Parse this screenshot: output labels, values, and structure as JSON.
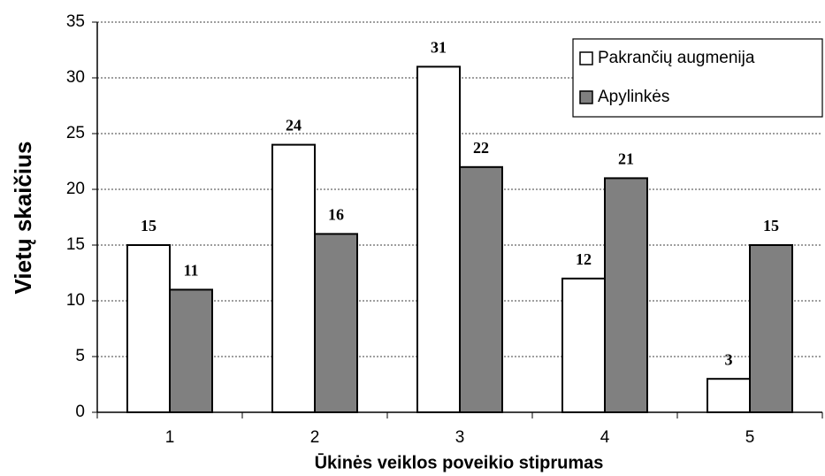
{
  "chart_data": {
    "type": "bar",
    "y_label": "Vietų skaičius",
    "x_label": "Ūkinės veiklos poveikio stiprumas",
    "categories": [
      "1",
      "2",
      "3",
      "4",
      "5"
    ],
    "series": [
      {
        "name": "Pakrančių augmenija",
        "color": "#ffffff",
        "values": [
          15,
          24,
          31,
          12,
          3
        ]
      },
      {
        "name": "Apylinkės",
        "color": "#808080",
        "values": [
          11,
          16,
          22,
          21,
          15
        ]
      }
    ],
    "ylim": [
      0,
      35
    ],
    "yticks": [
      0,
      5,
      10,
      15,
      20,
      25,
      30,
      35
    ],
    "grid": true,
    "legend": "upper right"
  }
}
